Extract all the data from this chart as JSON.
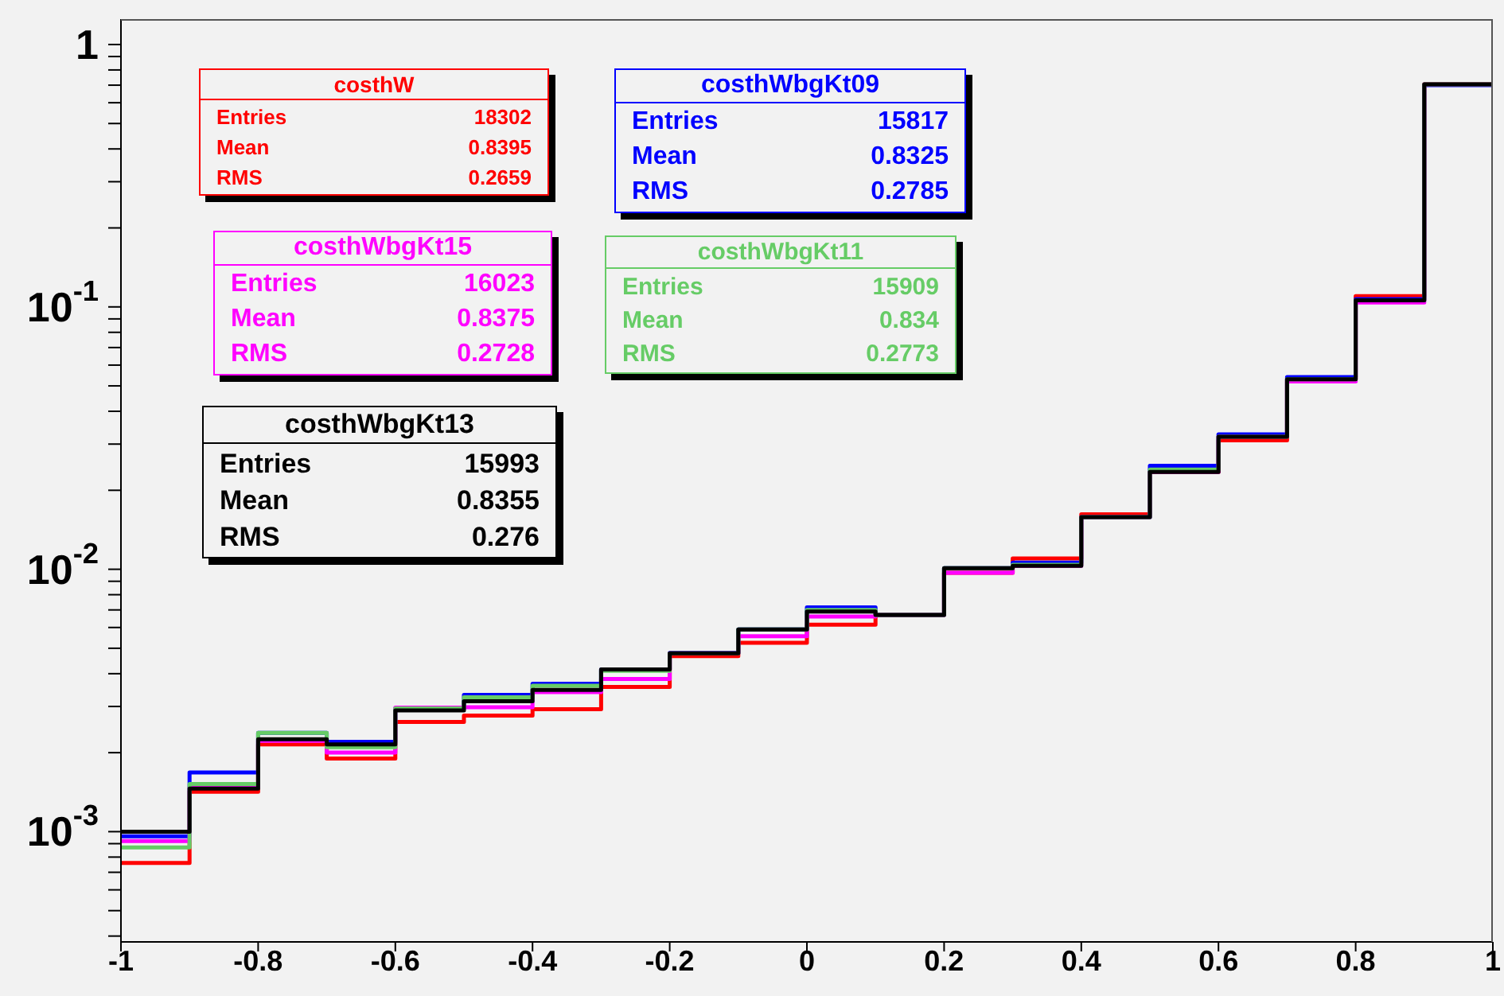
{
  "chart_data": {
    "type": "histogram",
    "bins": [
      -1,
      -0.9,
      -0.8,
      -0.7,
      -0.6,
      -0.5,
      -0.4,
      -0.3,
      -0.2,
      -0.1,
      0,
      0.1,
      0.2,
      0.3,
      0.4,
      0.5,
      0.6,
      0.7,
      0.8,
      0.9,
      1
    ],
    "series": [
      {
        "name": "costhW",
        "color": "#ff0000",
        "values": [
          0.00076,
          0.00142,
          0.00215,
          0.0019,
          0.00262,
          0.00277,
          0.00293,
          0.00356,
          0.00467,
          0.00525,
          0.00615,
          0.0067,
          0.0097,
          0.011,
          0.0162,
          0.0235,
          0.031,
          0.053,
          0.11,
          0.705
        ]
      },
      {
        "name": "costhWbgKt09",
        "color": "#0000ff",
        "values": [
          0.00096,
          0.00168,
          0.00238,
          0.0022,
          0.00295,
          0.00332,
          0.00366,
          0.00415,
          0.0048,
          0.0059,
          0.00716,
          0.0067,
          0.0101,
          0.0106,
          0.0158,
          0.0248,
          0.0327,
          0.054,
          0.107,
          0.7
        ]
      },
      {
        "name": "costhWbgKt15",
        "color": "#ff00ff",
        "values": [
          0.00092,
          0.00148,
          0.00222,
          0.002,
          0.00297,
          0.00298,
          0.0034,
          0.00382,
          0.00478,
          0.00556,
          0.0066,
          0.0067,
          0.0097,
          0.0103,
          0.0158,
          0.0235,
          0.032,
          0.052,
          0.104,
          0.705
        ]
      },
      {
        "name": "costhWbgKt11",
        "color": "#66cc66",
        "values": [
          0.00087,
          0.00152,
          0.00238,
          0.0021,
          0.00295,
          0.00325,
          0.0036,
          0.0041,
          0.00478,
          0.0059,
          0.007,
          0.0067,
          0.0101,
          0.0104,
          0.0158,
          0.024,
          0.032,
          0.053,
          0.106,
          0.705
        ]
      },
      {
        "name": "costhWbgKt13",
        "color": "#000000",
        "values": [
          0.001,
          0.00146,
          0.00225,
          0.00215,
          0.0029,
          0.00314,
          0.00347,
          0.00415,
          0.00478,
          0.0059,
          0.0069,
          0.0067,
          0.0101,
          0.0103,
          0.0158,
          0.0235,
          0.032,
          0.053,
          0.106,
          0.705
        ]
      }
    ],
    "annotations": [
      "Entries 18302",
      "Mean 0.8395",
      "RMS 0.2659",
      "Entries 15817",
      "Mean 0.8325",
      "RMS 0.2785",
      "Entries 16023",
      "Mean 0.8375",
      "RMS 0.2728",
      "Entries 15909",
      "Mean 0.834",
      "RMS 0.2773",
      "Entries 15993",
      "Mean 0.8355",
      "RMS 0.276"
    ],
    "log": true,
    "legend": "top left",
    "grid": false,
    "xlim": [
      -1,
      1
    ],
    "xticks": [
      -1,
      -0.8,
      -0.6,
      -0.4,
      -0.2,
      0,
      0.2,
      0.4,
      0.6,
      0.8,
      1
    ],
    "ylim": [
      0.00038,
      1.25
    ],
    "yticks": [
      {
        "value": 0.0004,
        "label": null
      },
      {
        "value": 0.0005,
        "label": null
      },
      {
        "value": 0.0006,
        "label": null
      },
      {
        "value": 0.0007,
        "label": null
      },
      {
        "value": 0.0008,
        "label": null
      },
      {
        "value": 0.0009,
        "label": null
      },
      {
        "value": 0.001,
        "label": "10$^{-3}$"
      },
      {
        "value": 0.002,
        "label": null
      },
      {
        "value": 0.003,
        "label": null
      },
      {
        "value": 0.004,
        "label": null
      },
      {
        "value": 0.005,
        "label": null
      },
      {
        "value": 0.006,
        "label": null
      },
      {
        "value": 0.007,
        "label": null
      },
      {
        "value": 0.008,
        "label": null
      },
      {
        "value": 0.009,
        "label": null
      },
      {
        "value": 0.01,
        "label": "10$^{-2}$"
      },
      {
        "value": 0.02,
        "label": null
      },
      {
        "value": 0.03,
        "label": null
      },
      {
        "value": 0.04,
        "label": null
      },
      {
        "value": 0.05,
        "label": null
      },
      {
        "value": 0.06,
        "label": null
      },
      {
        "value": 0.07,
        "label": null
      },
      {
        "value": 0.08,
        "label": null
      },
      {
        "value": 0.09,
        "label": null
      },
      {
        "value": 0.1,
        "label": "10$^{-1}$"
      },
      {
        "value": 0.2,
        "label": null
      },
      {
        "value": 0.3,
        "label": null
      },
      {
        "value": 0.4,
        "label": null
      },
      {
        "value": 0.5,
        "label": null
      },
      {
        "value": 0.6,
        "label": null
      },
      {
        "value": 0.7,
        "label": null
      },
      {
        "value": 0.8,
        "label": null
      },
      {
        "value": 0.9,
        "label": null
      },
      1
    ]
  }
}
